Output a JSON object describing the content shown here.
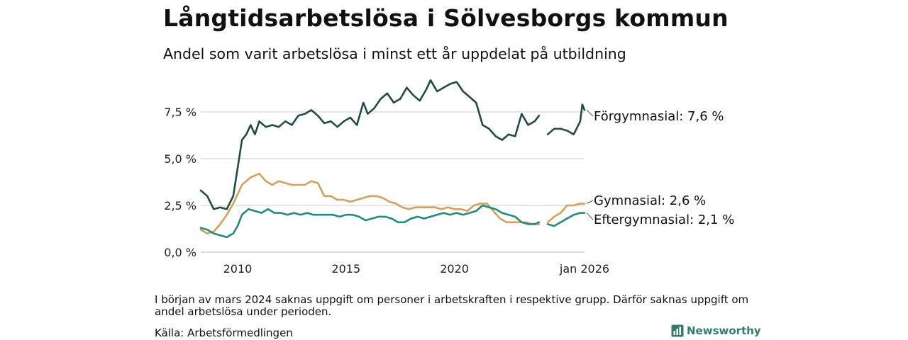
{
  "title": "Långtidsarbetslösa i Sölvesborgs kommun",
  "subtitle": "Andel som varit arbetslösa i minst ett år uppdelat på utbildning",
  "note": "I början av mars 2024 saknas uppgift om personer i arbetskraften i respektive grupp. Därför saknas uppgift om andel arbetslösa under perioden.",
  "source": "Källa: Arbetsförmedlingen",
  "brand": "Newsworthy",
  "chart_data": {
    "type": "line",
    "title": "Långtidsarbetslösa i Sölvesborgs kommun",
    "subtitle": "Andel som varit arbetslösa i minst ett år uppdelat på utbildning",
    "xlabel": "",
    "ylabel": "",
    "xlim": [
      2008.3,
      2026.0
    ],
    "ylim": [
      0,
      9.7
    ],
    "y_ticks": [
      0,
      2.5,
      5.0,
      7.5
    ],
    "y_tick_labels": [
      "0,0 %",
      "2,5 %",
      "5,0 %",
      "7,5 %"
    ],
    "x_ticks": [
      2010,
      2015,
      2020,
      2026.0
    ],
    "x_tick_labels": [
      "2010",
      "2015",
      "2020",
      "jan 2026"
    ],
    "grid": true,
    "gap": [
      2023.95,
      2024.25
    ],
    "series": [
      {
        "name": "Förgymnasial",
        "end_label": "Förgymnasial: 7,6 %",
        "color": "#1f4d45",
        "x": [
          2008.3,
          2008.6,
          2008.9,
          2009.2,
          2009.5,
          2009.8,
          2010.0,
          2010.2,
          2010.4,
          2010.6,
          2010.8,
          2011.0,
          2011.3,
          2011.6,
          2011.9,
          2012.2,
          2012.5,
          2012.8,
          2013.1,
          2013.4,
          2013.7,
          2014.0,
          2014.3,
          2014.6,
          2014.9,
          2015.2,
          2015.5,
          2015.8,
          2016.0,
          2016.3,
          2016.6,
          2016.9,
          2017.2,
          2017.5,
          2017.8,
          2018.1,
          2018.4,
          2018.7,
          2018.9,
          2019.2,
          2019.5,
          2019.8,
          2020.1,
          2020.4,
          2020.7,
          2021.0,
          2021.3,
          2021.6,
          2021.9,
          2022.2,
          2022.5,
          2022.8,
          2023.1,
          2023.4,
          2023.7,
          2023.9,
          2024.3,
          2024.6,
          2024.9,
          2025.2,
          2025.5,
          2025.8,
          2025.9,
          2026.0
        ],
        "values": [
          3.3,
          3.0,
          2.3,
          2.4,
          2.3,
          3.0,
          4.5,
          6.0,
          6.3,
          6.8,
          6.3,
          7.0,
          6.7,
          6.8,
          6.7,
          7.0,
          6.8,
          7.3,
          7.4,
          7.6,
          7.3,
          6.9,
          7.0,
          6.7,
          7.0,
          7.2,
          6.8,
          8.0,
          7.4,
          7.7,
          8.2,
          8.5,
          8.0,
          8.2,
          8.8,
          8.4,
          8.1,
          8.7,
          9.2,
          8.6,
          8.8,
          9.0,
          9.1,
          8.6,
          8.3,
          8.0,
          6.8,
          6.6,
          6.2,
          6.0,
          6.3,
          6.2,
          7.4,
          6.8,
          7.0,
          7.3,
          6.3,
          6.6,
          6.6,
          6.5,
          6.3,
          7.0,
          7.9,
          7.6
        ]
      },
      {
        "name": "Gymnasial",
        "end_label": "Gymnasial: 2,6 %",
        "color": "#d3a157",
        "x": [
          2008.3,
          2008.6,
          2008.9,
          2009.2,
          2009.5,
          2009.8,
          2010.0,
          2010.2,
          2010.4,
          2010.6,
          2010.8,
          2011.0,
          2011.3,
          2011.6,
          2011.9,
          2012.2,
          2012.5,
          2012.8,
          2013.1,
          2013.4,
          2013.7,
          2014.0,
          2014.3,
          2014.6,
          2014.9,
          2015.2,
          2015.5,
          2015.8,
          2016.1,
          2016.4,
          2016.7,
          2017.0,
          2017.3,
          2017.6,
          2017.9,
          2018.2,
          2018.5,
          2018.8,
          2019.1,
          2019.4,
          2019.7,
          2020.0,
          2020.3,
          2020.6,
          2020.9,
          2021.2,
          2021.5,
          2021.8,
          2022.1,
          2022.4,
          2022.7,
          2023.0,
          2023.3,
          2023.6,
          2023.9,
          2024.3,
          2024.6,
          2024.9,
          2025.2,
          2025.5,
          2025.8,
          2026.0
        ],
        "values": [
          1.2,
          1.0,
          1.1,
          1.5,
          2.0,
          2.6,
          3.1,
          3.6,
          3.8,
          4.0,
          4.1,
          4.2,
          3.8,
          3.6,
          3.8,
          3.7,
          3.6,
          3.6,
          3.6,
          3.8,
          3.7,
          3.0,
          3.0,
          2.8,
          2.8,
          2.7,
          2.8,
          2.9,
          3.0,
          3.0,
          2.9,
          2.7,
          2.6,
          2.4,
          2.3,
          2.4,
          2.4,
          2.4,
          2.4,
          2.3,
          2.4,
          2.3,
          2.3,
          2.2,
          2.5,
          2.6,
          2.6,
          2.2,
          1.8,
          1.6,
          1.6,
          1.6,
          1.6,
          1.5,
          1.5,
          1.6,
          1.9,
          2.1,
          2.5,
          2.5,
          2.6,
          2.6
        ]
      },
      {
        "name": "Eftergymnasial",
        "end_label": "Eftergymnasial: 2,1 %",
        "color": "#1f8d7c",
        "x": [
          2008.3,
          2008.6,
          2008.9,
          2009.2,
          2009.5,
          2009.8,
          2010.0,
          2010.2,
          2010.5,
          2010.8,
          2011.1,
          2011.4,
          2011.7,
          2012.0,
          2012.3,
          2012.6,
          2012.9,
          2013.2,
          2013.5,
          2013.8,
          2014.1,
          2014.4,
          2014.7,
          2015.0,
          2015.3,
          2015.6,
          2015.9,
          2016.2,
          2016.5,
          2016.8,
          2017.1,
          2017.4,
          2017.7,
          2018.0,
          2018.3,
          2018.6,
          2018.9,
          2019.2,
          2019.5,
          2019.8,
          2020.1,
          2020.4,
          2020.7,
          2021.0,
          2021.3,
          2021.6,
          2021.9,
          2022.2,
          2022.5,
          2022.8,
          2023.1,
          2023.4,
          2023.7,
          2023.9,
          2024.3,
          2024.6,
          2024.9,
          2025.2,
          2025.5,
          2025.8,
          2026.0
        ],
        "values": [
          1.3,
          1.2,
          1.0,
          0.9,
          0.8,
          1.0,
          1.4,
          2.0,
          2.3,
          2.2,
          2.1,
          2.3,
          2.1,
          2.1,
          2.0,
          2.1,
          2.0,
          2.1,
          2.0,
          2.0,
          2.0,
          2.0,
          1.9,
          2.0,
          2.0,
          1.9,
          1.7,
          1.8,
          1.9,
          1.9,
          1.8,
          1.6,
          1.6,
          1.8,
          1.9,
          1.8,
          1.9,
          2.0,
          2.1,
          2.0,
          2.1,
          2.0,
          2.1,
          2.2,
          2.5,
          2.4,
          2.3,
          2.1,
          2.0,
          1.9,
          1.6,
          1.5,
          1.5,
          1.6,
          1.5,
          1.4,
          1.6,
          1.8,
          2.0,
          2.1,
          2.1
        ]
      }
    ]
  }
}
